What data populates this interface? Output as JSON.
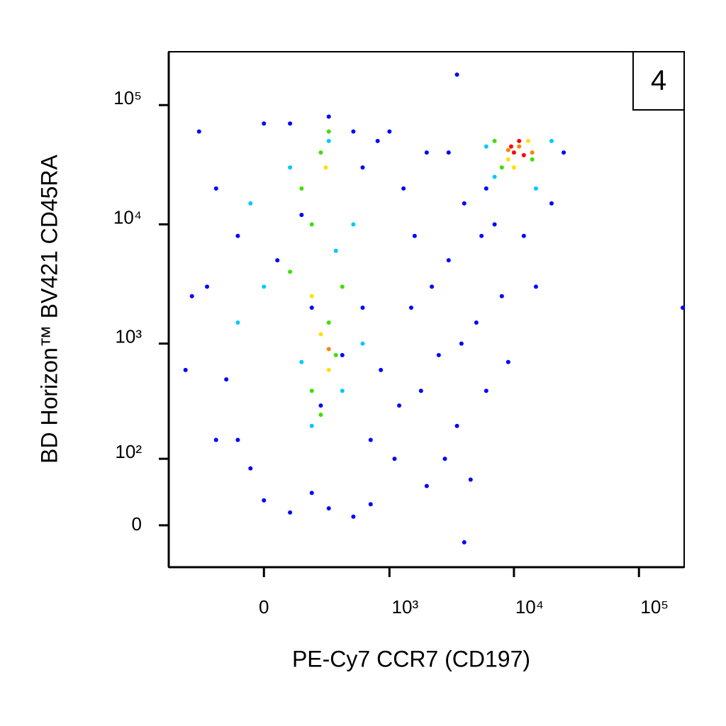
{
  "chart_data": {
    "type": "scatter",
    "xlabel": "PE-Cy7 CCR7 (CD197)",
    "ylabel": "BD Horizon™ BV421 CD45RA",
    "annotation": "4",
    "xscale": "biexponential",
    "yscale": "biexponential",
    "xlim": [
      -560,
      230000
    ],
    "ylim": [
      -54,
      280000
    ],
    "xticks": [
      0,
      {
        "value": 1000,
        "label": "10³"
      },
      {
        "value": 10000,
        "label": "10⁴"
      },
      {
        "value": 100000,
        "label": "10⁵"
      }
    ],
    "yticks": [
      0,
      {
        "value": 100,
        "label": "10²"
      },
      {
        "value": 1000,
        "label": "10³"
      },
      {
        "value": 10000,
        "label": "10⁴"
      },
      {
        "value": 100000,
        "label": "10⁵"
      }
    ],
    "series": [
      {
        "color": "#0000ff",
        "x": [
          -300,
          -200,
          -250,
          -150,
          -100,
          -50,
          0,
          50,
          100,
          150,
          200,
          250,
          300,
          400,
          500,
          600,
          700,
          800,
          850,
          -400,
          -350,
          -200,
          0,
          100,
          300,
          500,
          700,
          200,
          -100,
          600,
          1200,
          1500,
          2000,
          2500,
          3000,
          3500,
          4000,
          5000,
          6000,
          7000,
          1000,
          1300,
          1800,
          2200,
          2800,
          4500,
          3000,
          5500,
          8000,
          9000,
          15000,
          20000,
          25000,
          6000,
          12000,
          2000,
          1100,
          1600,
          3800,
          4000,
          3500,
          230000
        ],
        "y": [
          60000,
          20000,
          3000,
          500,
          150,
          80,
          30,
          5000,
          70000,
          12000,
          40,
          300,
          80000,
          800,
          60000,
          2000,
          150,
          50000,
          600,
          600,
          2500,
          150,
          70000,
          15,
          20,
          10,
          25,
          2000,
          8000,
          30000,
          300,
          2000,
          50,
          800,
          5000,
          200,
          15000,
          1500,
          400,
          10000,
          60000,
          20000,
          400,
          3000,
          100,
          60,
          40000,
          8000,
          2500,
          700,
          3000,
          15000,
          40000,
          20000,
          8000,
          40000,
          100,
          8000,
          1000,
          -20,
          180000,
          2000
        ]
      },
      {
        "color": "#00c8ff",
        "x": [
          100,
          300,
          -100,
          400,
          200,
          0,
          500,
          150,
          350,
          600,
          -50,
          7000,
          15000,
          20000,
          6000
        ],
        "y": [
          30000,
          50000,
          1500,
          400,
          200,
          3000,
          10000,
          700,
          6000,
          1000,
          15000,
          25000,
          20000,
          50000,
          45000
        ]
      },
      {
        "color": "#3ce000",
        "x": [
          150,
          250,
          300,
          200,
          350,
          100,
          400,
          250,
          200,
          300,
          8000,
          14000,
          7000
        ],
        "y": [
          20000,
          40000,
          1500,
          400,
          800,
          4000,
          3000,
          250,
          10000,
          60000,
          30000,
          35000,
          50000
        ]
      },
      {
        "color": "#ffe000",
        "x": [
          250,
          300,
          200,
          280,
          9000,
          13000,
          10000
        ],
        "y": [
          1200,
          600,
          2500,
          30000,
          35000,
          50000,
          30000
        ]
      },
      {
        "color": "#ff8000",
        "x": [
          300,
          11000,
          9000,
          14000
        ],
        "y": [
          900,
          45000,
          42000,
          40000
        ]
      },
      {
        "color": "#ff0000",
        "x": [
          10000,
          12000,
          11000,
          9500
        ],
        "y": [
          40000,
          38000,
          50000,
          45000
        ]
      }
    ]
  }
}
